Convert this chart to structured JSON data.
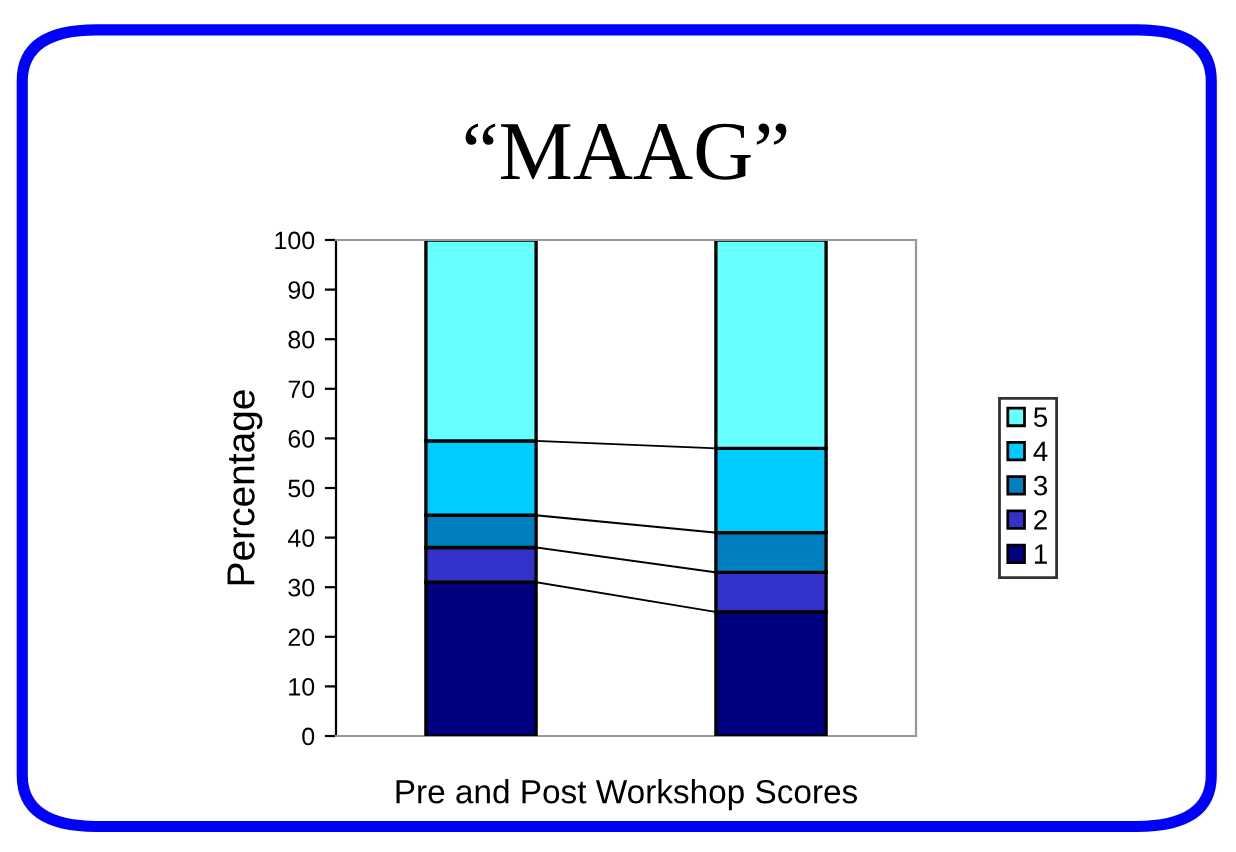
{
  "chart_data": {
    "type": "bar",
    "title": "“MAAG”",
    "xlabel": "Pre and Post Workshop Scores",
    "ylabel": "Percentage",
    "categories": [
      null,
      null
    ],
    "stacked": true,
    "series": [
      {
        "name": "1",
        "color": "#000080",
        "values": [
          31,
          25
        ]
      },
      {
        "name": "2",
        "color": "#3333cc",
        "values": [
          7,
          8
        ]
      },
      {
        "name": "3",
        "color": "#0080c0",
        "values": [
          6.5,
          8
        ]
      },
      {
        "name": "4",
        "color": "#00ccff",
        "values": [
          15,
          17
        ]
      },
      {
        "name": "5",
        "color": "#66ffff",
        "values": [
          40.5,
          42
        ]
      }
    ],
    "ylim": [
      0,
      100
    ],
    "yticks": [
      0,
      10,
      20,
      30,
      40,
      50,
      60,
      70,
      80,
      90,
      100
    ],
    "grid": false,
    "legend": "right"
  }
}
